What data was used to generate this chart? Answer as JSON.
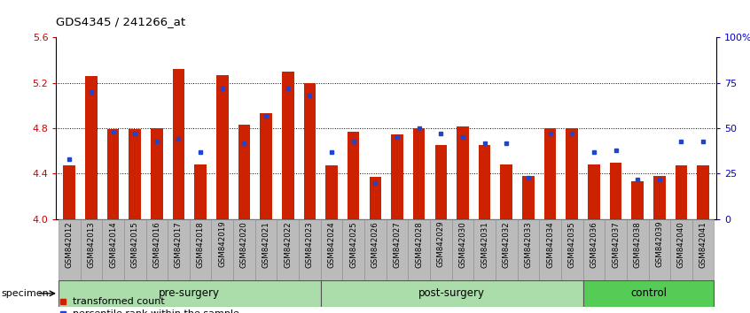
{
  "title": "GDS4345 / 241266_at",
  "samples": [
    "GSM842012",
    "GSM842013",
    "GSM842014",
    "GSM842015",
    "GSM842016",
    "GSM842017",
    "GSM842018",
    "GSM842019",
    "GSM842020",
    "GSM842021",
    "GSM842022",
    "GSM842023",
    "GSM842024",
    "GSM842025",
    "GSM842026",
    "GSM842027",
    "GSM842028",
    "GSM842029",
    "GSM842030",
    "GSM842031",
    "GSM842032",
    "GSM842033",
    "GSM842034",
    "GSM842035",
    "GSM842036",
    "GSM842037",
    "GSM842038",
    "GSM842039",
    "GSM842040",
    "GSM842041"
  ],
  "red_values": [
    4.47,
    5.26,
    4.79,
    4.79,
    4.8,
    5.32,
    4.48,
    5.27,
    4.83,
    4.93,
    5.3,
    5.2,
    4.47,
    4.77,
    4.37,
    4.75,
    4.8,
    4.65,
    4.82,
    4.65,
    4.48,
    4.38,
    4.8,
    4.8,
    4.48,
    4.5,
    4.33,
    4.38,
    4.47,
    4.47
  ],
  "blue_values_pct": [
    33,
    70,
    48,
    47,
    43,
    44,
    37,
    72,
    42,
    57,
    72,
    68,
    37,
    43,
    20,
    45,
    50,
    47,
    45,
    42,
    42,
    23,
    47,
    47,
    37,
    38,
    22,
    22,
    43,
    43
  ],
  "group_defs": [
    {
      "label": "pre-surgery",
      "start": 0,
      "end": 11,
      "color": "#aaddaa"
    },
    {
      "label": "post-surgery",
      "start": 12,
      "end": 23,
      "color": "#aaddaa"
    },
    {
      "label": "control",
      "start": 24,
      "end": 29,
      "color": "#55cc55"
    }
  ],
  "ylim": [
    4.0,
    5.6
  ],
  "yticks_left": [
    4.0,
    4.4,
    4.8,
    5.2,
    5.6
  ],
  "yticks_right_vals": [
    0,
    25,
    50,
    75,
    100
  ],
  "yticks_right_labels": [
    "0",
    "25",
    "50",
    "75",
    "100%"
  ],
  "red_color": "#cc2200",
  "blue_color": "#2244cc",
  "bar_width": 0.55,
  "left_tick_color": "#cc0000",
  "right_tick_color": "#0000cc",
  "grid_color": "#000000",
  "bg_plot": "#ffffff",
  "bg_xtick": "#bbbbbb"
}
